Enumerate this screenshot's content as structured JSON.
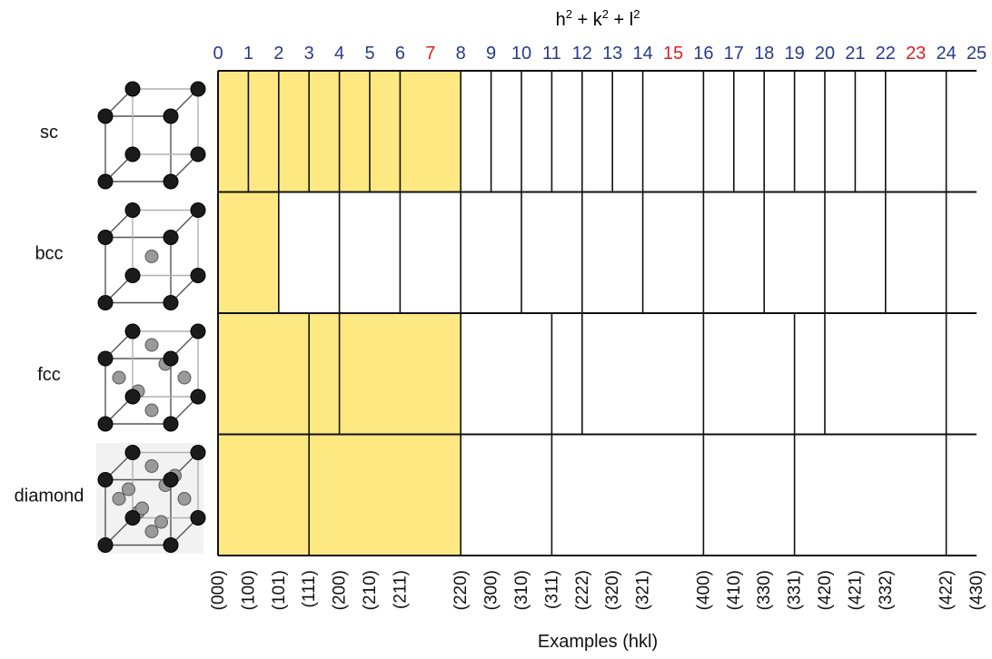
{
  "title": {
    "h": "h",
    "k": "k",
    "l": "l",
    "sup": "2",
    "plus": " + "
  },
  "colors": {
    "index": "#283a8e",
    "forbidden": "#e02020",
    "fill": "#fde882",
    "line": "#111111"
  },
  "indices": [
    "0",
    "1",
    "2",
    "3",
    "4",
    "5",
    "6",
    "7",
    "8",
    "9",
    "10",
    "11",
    "12",
    "13",
    "14",
    "15",
    "16",
    "17",
    "18",
    "19",
    "20",
    "21",
    "22",
    "23",
    "24",
    "25"
  ],
  "red_indices": [
    "7",
    "15",
    "23"
  ],
  "rows": [
    {
      "label": "sc",
      "lines": [
        1,
        2,
        3,
        4,
        5,
        6,
        8,
        9,
        10,
        11,
        12,
        13,
        14,
        16,
        17,
        18,
        19,
        20,
        21,
        22,
        24
      ],
      "fill_to": 8
    },
    {
      "label": "bcc",
      "lines": [
        2,
        4,
        6,
        8,
        10,
        12,
        14,
        16,
        18,
        20,
        22,
        24
      ],
      "fill_to": 2
    },
    {
      "label": "fcc",
      "lines": [
        3,
        4,
        8,
        11,
        12,
        16,
        19,
        20,
        24
      ],
      "fill_to": 8
    },
    {
      "label": "diamond",
      "lines": [
        3,
        8,
        11,
        16,
        19,
        24
      ],
      "fill_to": 8
    }
  ],
  "hkl_labels": [
    {
      "n": 0,
      "text": "(000)"
    },
    {
      "n": 1,
      "text": "(100)"
    },
    {
      "n": 2,
      "text": "(101)"
    },
    {
      "n": 3,
      "text": "(111)"
    },
    {
      "n": 4,
      "text": "(200)"
    },
    {
      "n": 5,
      "text": "(210)"
    },
    {
      "n": 6,
      "text": "(211)"
    },
    {
      "n": 8,
      "text": "(220)"
    },
    {
      "n": 9,
      "text": "(300)"
    },
    {
      "n": 10,
      "text": "(310)"
    },
    {
      "n": 11,
      "text": "(311)"
    },
    {
      "n": 12,
      "text": "(222)"
    },
    {
      "n": 13,
      "text": "(320)"
    },
    {
      "n": 14,
      "text": "(321)"
    },
    {
      "n": 16,
      "text": "(400)"
    },
    {
      "n": 17,
      "text": "(410)"
    },
    {
      "n": 18,
      "text": "(330)"
    },
    {
      "n": 19,
      "text": "(331)"
    },
    {
      "n": 20,
      "text": "(420)"
    },
    {
      "n": 21,
      "text": "(421)"
    },
    {
      "n": 22,
      "text": "(332)"
    },
    {
      "n": 24,
      "text": "(422)"
    },
    {
      "n": 25,
      "text": "(430)"
    }
  ],
  "xlabel": "Examples (hkl)",
  "lattices": [
    "sc",
    "bcc",
    "fcc",
    "diamond"
  ]
}
